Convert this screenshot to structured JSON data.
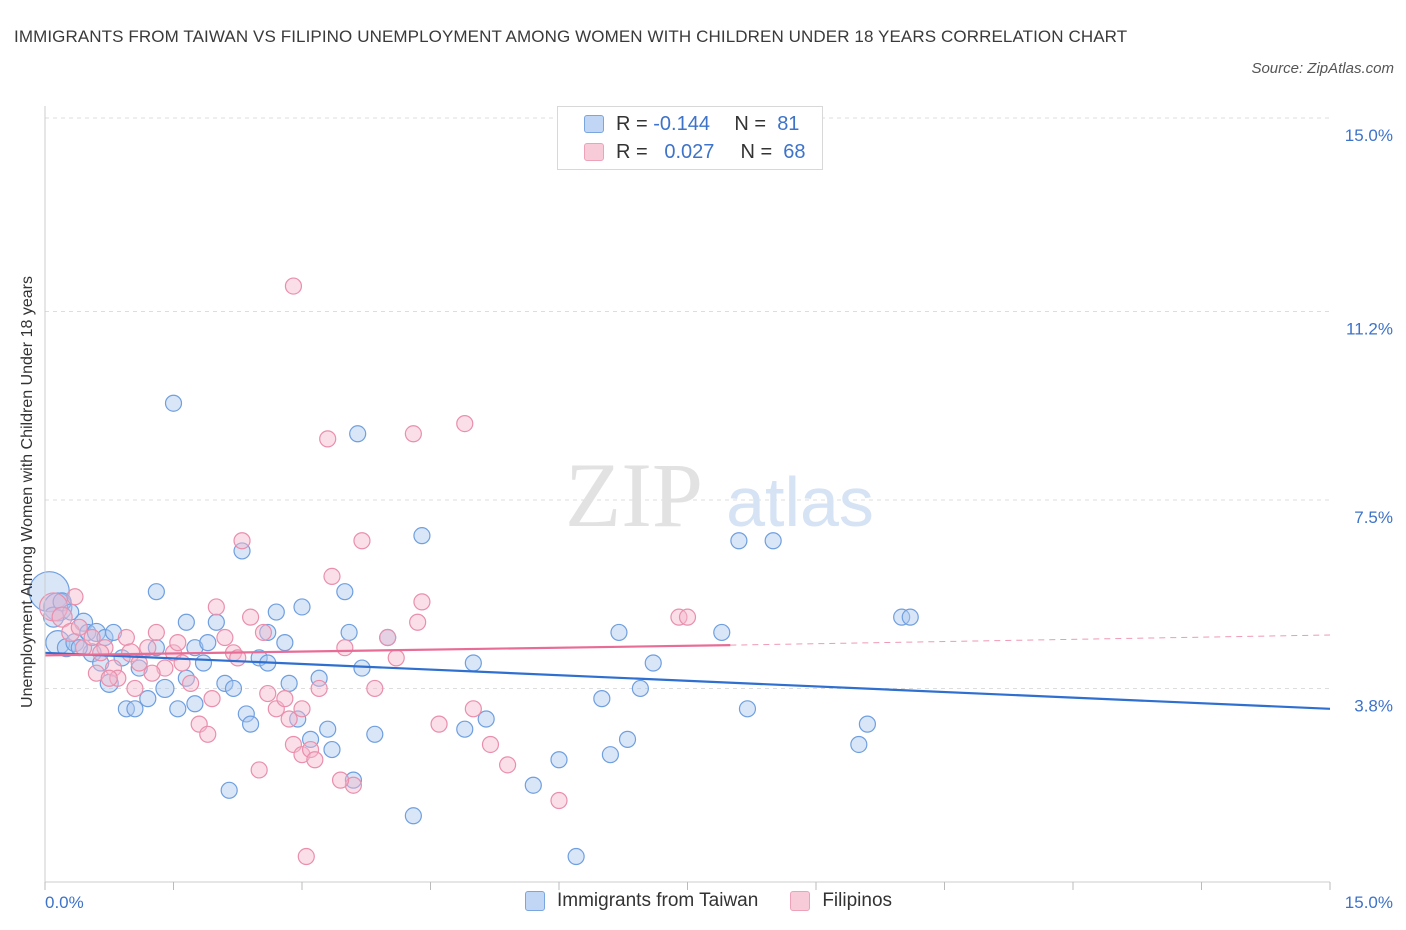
{
  "title": "IMMIGRANTS FROM TAIWAN VS FILIPINO UNEMPLOYMENT AMONG WOMEN WITH CHILDREN UNDER 18 YEARS CORRELATION CHART",
  "source": "Source: ZipAtlas.com",
  "watermark": {
    "zip": "ZIP",
    "atlas": "atlas"
  },
  "legend": {
    "taiwan": {
      "r_label": "R =",
      "r_value": "-0.144",
      "n_label": "N =",
      "n_value": "81"
    },
    "filipino": {
      "r_label": "R =",
      "r_value": "0.027",
      "n_label": "N =",
      "n_value": "68"
    }
  },
  "bottom_legend": {
    "taiwan": "Immigrants from Taiwan",
    "filipino": "Filipinos"
  },
  "colors": {
    "taiwan_fill": "#aac8f0",
    "taiwan_stroke": "#6f9fdf",
    "taiwan_line": "#2f6fd0",
    "filipino_fill": "#f5b8cb",
    "filipino_stroke": "#e98fac",
    "filipino_line": "#e86d96",
    "axis_label": "#3d73c9",
    "grid": "#dddddd"
  },
  "chart_data": {
    "type": "scatter",
    "title": "IMMIGRANTS FROM TAIWAN VS FILIPINO UNEMPLOYMENT AMONG WOMEN WITH CHILDREN UNDER 18 YEARS CORRELATION CHART",
    "xlabel": "",
    "ylabel": "Unemployment Among Women with Children Under 18 years",
    "xlim": [
      0,
      15
    ],
    "ylim": [
      0,
      15
    ],
    "x_tick_labels": [
      "0.0%",
      "15.0%"
    ],
    "y_ticks": [
      3.8,
      7.5,
      11.2,
      15.0
    ],
    "y_tick_labels": [
      "3.8%",
      "7.5%",
      "11.2%",
      "15.0%"
    ],
    "grid": true,
    "legend_position": "top-center",
    "series": [
      {
        "name": "Immigrants from Taiwan",
        "r": -0.144,
        "n": 81,
        "trend": {
          "x": [
            0,
            15
          ],
          "y": [
            4.5,
            3.4
          ]
        },
        "points": [
          [
            0.05,
            5.7,
            20
          ],
          [
            0.15,
            5.4,
            14
          ],
          [
            0.1,
            5.2,
            10
          ],
          [
            0.2,
            5.5,
            9
          ],
          [
            0.15,
            4.7,
            12
          ],
          [
            0.25,
            4.6,
            9
          ],
          [
            0.35,
            4.7,
            9
          ],
          [
            0.45,
            5.1,
            9
          ],
          [
            0.5,
            4.9,
            8
          ],
          [
            0.6,
            4.9,
            9
          ],
          [
            0.7,
            4.8,
            8
          ],
          [
            0.8,
            4.9,
            8
          ],
          [
            0.55,
            4.5,
            9
          ],
          [
            0.65,
            4.3,
            8
          ],
          [
            0.75,
            3.9,
            9
          ],
          [
            0.95,
            3.4,
            8
          ],
          [
            1.05,
            3.4,
            8
          ],
          [
            1.2,
            3.6,
            8
          ],
          [
            1.3,
            4.6,
            8
          ],
          [
            1.4,
            3.8,
            9
          ],
          [
            1.55,
            3.4,
            8
          ],
          [
            1.65,
            4.0,
            8
          ],
          [
            1.75,
            4.6,
            8
          ],
          [
            1.9,
            4.7,
            8
          ],
          [
            1.5,
            9.4,
            8
          ],
          [
            1.3,
            5.7,
            8
          ],
          [
            1.65,
            5.1,
            8
          ],
          [
            2.0,
            5.1,
            8
          ],
          [
            2.1,
            3.9,
            8
          ],
          [
            2.2,
            3.8,
            8
          ],
          [
            2.35,
            3.3,
            8
          ],
          [
            2.5,
            4.4,
            8
          ],
          [
            2.6,
            4.3,
            8
          ],
          [
            2.6,
            4.9,
            8
          ],
          [
            2.7,
            5.3,
            8
          ],
          [
            2.3,
            6.5,
            8
          ],
          [
            2.15,
            1.8,
            8
          ],
          [
            2.85,
            3.9,
            8
          ],
          [
            2.95,
            3.2,
            8
          ],
          [
            3.0,
            5.4,
            8
          ],
          [
            3.2,
            4.0,
            8
          ],
          [
            3.3,
            3.0,
            8
          ],
          [
            3.1,
            2.8,
            8
          ],
          [
            3.35,
            2.6,
            8
          ],
          [
            3.5,
            5.7,
            8
          ],
          [
            3.55,
            4.9,
            8
          ],
          [
            3.7,
            4.2,
            8
          ],
          [
            3.6,
            2.0,
            8
          ],
          [
            3.85,
            2.9,
            8
          ],
          [
            3.65,
            8.8,
            8
          ],
          [
            4.0,
            4.8,
            8
          ],
          [
            4.4,
            6.8,
            8
          ],
          [
            4.3,
            1.3,
            8
          ],
          [
            5.0,
            4.3,
            8
          ],
          [
            4.9,
            3.0,
            8
          ],
          [
            5.15,
            3.2,
            8
          ],
          [
            5.7,
            1.9,
            8
          ],
          [
            6.0,
            2.4,
            8
          ],
          [
            6.2,
            0.5,
            8
          ],
          [
            6.5,
            3.6,
            8
          ],
          [
            6.7,
            4.9,
            8
          ],
          [
            6.6,
            2.5,
            8
          ],
          [
            6.8,
            2.8,
            8
          ],
          [
            6.95,
            3.8,
            8
          ],
          [
            7.1,
            4.3,
            8
          ],
          [
            7.9,
            4.9,
            8
          ],
          [
            8.1,
            6.7,
            8
          ],
          [
            8.2,
            3.4,
            8
          ],
          [
            8.5,
            6.7,
            8
          ],
          [
            9.5,
            2.7,
            8
          ],
          [
            9.6,
            3.1,
            8
          ],
          [
            10.0,
            5.2,
            8
          ],
          [
            10.1,
            5.2,
            8
          ],
          [
            0.9,
            4.4,
            8
          ],
          [
            1.1,
            4.2,
            8
          ],
          [
            2.4,
            3.1,
            8
          ],
          [
            1.85,
            4.3,
            8
          ],
          [
            0.3,
            5.3,
            8
          ],
          [
            0.4,
            4.6,
            8
          ],
          [
            2.8,
            4.7,
            8
          ],
          [
            1.75,
            3.5,
            8
          ]
        ]
      },
      {
        "name": "Filipinos",
        "r": 0.027,
        "n": 68,
        "trend": {
          "x": [
            0,
            8.0
          ],
          "y": [
            4.45,
            4.65
          ]
        },
        "trend_dashed": {
          "x": [
            8.0,
            15
          ],
          "y": [
            4.65,
            4.85
          ]
        },
        "points": [
          [
            0.1,
            5.4,
            14
          ],
          [
            0.2,
            5.2,
            10
          ],
          [
            0.3,
            4.9,
            9
          ],
          [
            0.35,
            5.6,
            8
          ],
          [
            0.45,
            4.6,
            8
          ],
          [
            0.55,
            4.8,
            8
          ],
          [
            0.6,
            4.1,
            8
          ],
          [
            0.7,
            4.6,
            8
          ],
          [
            0.8,
            4.2,
            8
          ],
          [
            0.85,
            4.0,
            8
          ],
          [
            0.95,
            4.8,
            8
          ],
          [
            1.0,
            4.5,
            9
          ],
          [
            1.1,
            4.3,
            8
          ],
          [
            1.2,
            4.6,
            8
          ],
          [
            1.3,
            4.9,
            8
          ],
          [
            1.4,
            4.2,
            8
          ],
          [
            1.5,
            4.5,
            8
          ],
          [
            1.6,
            4.3,
            8
          ],
          [
            1.7,
            3.9,
            8
          ],
          [
            1.8,
            3.1,
            8
          ],
          [
            1.9,
            2.9,
            8
          ],
          [
            2.0,
            5.4,
            8
          ],
          [
            2.1,
            4.8,
            8
          ],
          [
            2.2,
            4.5,
            8
          ],
          [
            2.3,
            6.7,
            8
          ],
          [
            2.4,
            5.2,
            8
          ],
          [
            2.55,
            4.9,
            8
          ],
          [
            2.6,
            3.7,
            8
          ],
          [
            2.7,
            3.4,
            8
          ],
          [
            2.8,
            3.6,
            8
          ],
          [
            2.9,
            2.7,
            8
          ],
          [
            3.0,
            2.5,
            8
          ],
          [
            3.1,
            2.6,
            8
          ],
          [
            3.2,
            3.8,
            8
          ],
          [
            3.3,
            8.7,
            8
          ],
          [
            3.35,
            6.0,
            8
          ],
          [
            3.5,
            4.6,
            8
          ],
          [
            3.6,
            1.9,
            8
          ],
          [
            3.7,
            6.7,
            8
          ],
          [
            3.85,
            3.8,
            8
          ],
          [
            4.0,
            4.8,
            8
          ],
          [
            4.1,
            4.4,
            8
          ],
          [
            4.3,
            8.8,
            8
          ],
          [
            4.35,
            5.1,
            8
          ],
          [
            4.4,
            5.5,
            8
          ],
          [
            4.6,
            3.1,
            8
          ],
          [
            4.9,
            9.0,
            8
          ],
          [
            5.0,
            3.4,
            8
          ],
          [
            5.2,
            2.7,
            8
          ],
          [
            5.4,
            2.3,
            8
          ],
          [
            6.0,
            1.6,
            8
          ],
          [
            7.4,
            5.2,
            8
          ],
          [
            7.5,
            5.2,
            8
          ],
          [
            2.9,
            11.7,
            8
          ],
          [
            3.05,
            0.5,
            8
          ],
          [
            0.65,
            4.5,
            8
          ],
          [
            1.05,
            3.8,
            8
          ],
          [
            1.55,
            4.7,
            8
          ],
          [
            2.25,
            4.4,
            8
          ],
          [
            2.5,
            2.2,
            8
          ],
          [
            2.85,
            3.2,
            8
          ],
          [
            3.0,
            3.4,
            8
          ],
          [
            3.45,
            2.0,
            8
          ],
          [
            0.4,
            5.0,
            8
          ],
          [
            0.75,
            4.0,
            8
          ],
          [
            1.25,
            4.1,
            8
          ],
          [
            1.95,
            3.6,
            8
          ],
          [
            3.15,
            2.4,
            8
          ]
        ]
      }
    ]
  }
}
